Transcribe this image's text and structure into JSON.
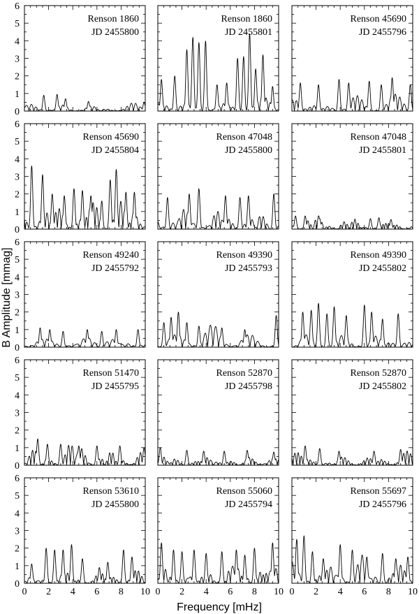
{
  "chart_data": {
    "type": "line",
    "xlabel": "Frequency [mHz]",
    "ylabel": "B Amplitude [mmag]",
    "xlim": [
      0,
      10
    ],
    "ylim": [
      0,
      6
    ],
    "x_ticks": [
      0,
      2,
      4,
      6,
      8,
      10
    ],
    "y_ticks": [
      0,
      1,
      2,
      3,
      4,
      5,
      6
    ],
    "panels": [
      {
        "star": "Renson 1860",
        "jd": "JD 2455800",
        "noise": 0.45,
        "peaks": [
          [
            1.6,
            0.9
          ],
          [
            2.7,
            0.95
          ],
          [
            3.4,
            0.7
          ],
          [
            5.3,
            0.55
          ],
          [
            9.9,
            0.5
          ]
        ]
      },
      {
        "star": "Renson 1860",
        "jd": "JD 2455801",
        "noise": 0.6,
        "peaks": [
          [
            0.3,
            1.8
          ],
          [
            1.4,
            2.0
          ],
          [
            2.4,
            3.5
          ],
          [
            2.9,
            4.2
          ],
          [
            3.4,
            3.9
          ],
          [
            3.95,
            4.0
          ],
          [
            4.9,
            1.5
          ],
          [
            5.7,
            1.6
          ],
          [
            6.6,
            3.0
          ],
          [
            7.1,
            3.1
          ],
          [
            7.6,
            4.4
          ],
          [
            8.1,
            2.4
          ],
          [
            8.7,
            3.2
          ],
          [
            9.5,
            1.4
          ]
        ]
      },
      {
        "star": "Renson 45690",
        "jd": "JD 2455796",
        "noise": 1.0,
        "peaks": [
          [
            0.7,
            1.6
          ],
          [
            2.2,
            1.5
          ],
          [
            3.9,
            1.8
          ],
          [
            4.7,
            1.6
          ],
          [
            6.4,
            1.7
          ],
          [
            7.4,
            1.5
          ],
          [
            8.3,
            1.9
          ],
          [
            9.8,
            1.5
          ]
        ]
      },
      {
        "star": "Renson 45690",
        "jd": "JD 2455804",
        "noise": 1.2,
        "peaks": [
          [
            0.6,
            3.6
          ],
          [
            1.5,
            3.1
          ],
          [
            2.3,
            2.0
          ],
          [
            3.3,
            1.9
          ],
          [
            4.1,
            2.3
          ],
          [
            4.8,
            2.2
          ],
          [
            5.5,
            1.9
          ],
          [
            6.4,
            1.6
          ],
          [
            7.1,
            2.8
          ],
          [
            7.6,
            3.4
          ],
          [
            8.4,
            2.1
          ],
          [
            9.1,
            2.1
          ]
        ]
      },
      {
        "star": "Renson 47048",
        "jd": "JD 2455800",
        "noise": 1.0,
        "peaks": [
          [
            0.8,
            1.8
          ],
          [
            2.6,
            2.0
          ],
          [
            3.4,
            2.3
          ],
          [
            5.6,
            1.9
          ],
          [
            6.8,
            1.8
          ],
          [
            7.5,
            1.9
          ],
          [
            9.6,
            2.0
          ]
        ]
      },
      {
        "star": "Renson 47048",
        "jd": "JD 2455801",
        "noise": 0.45,
        "peaks": [
          [
            0.3,
            0.75
          ],
          [
            1.1,
            0.75
          ],
          [
            2.3,
            0.6
          ],
          [
            6.5,
            0.6
          ],
          [
            7.2,
            0.65
          ],
          [
            8.2,
            0.55
          ]
        ]
      },
      {
        "star": "Renson 49240",
        "jd": "JD 2455792",
        "noise": 0.65,
        "peaks": [
          [
            1.3,
            1.1
          ],
          [
            2.1,
            1.0
          ],
          [
            3.2,
            0.9
          ],
          [
            5.2,
            1.0
          ],
          [
            6.4,
            0.9
          ],
          [
            7.6,
            1.0
          ],
          [
            9.4,
            1.0
          ]
        ]
      },
      {
        "star": "Renson 49390",
        "jd": "JD 2455793",
        "noise": 0.9,
        "peaks": [
          [
            0.5,
            1.4
          ],
          [
            1.1,
            1.7
          ],
          [
            1.7,
            2.0
          ],
          [
            2.4,
            1.4
          ],
          [
            3.4,
            1.2
          ],
          [
            5.3,
            1.1
          ],
          [
            7.2,
            1.0
          ],
          [
            9.8,
            1.8
          ]
        ]
      },
      {
        "star": "Renson 49390",
        "jd": "JD 2455802",
        "noise": 0.8,
        "peaks": [
          [
            0.9,
            2.0
          ],
          [
            1.6,
            2.1
          ],
          [
            2.2,
            2.5
          ],
          [
            2.9,
            1.9
          ],
          [
            3.5,
            2.3
          ],
          [
            4.5,
            1.8
          ],
          [
            6.0,
            2.4
          ],
          [
            6.6,
            2.0
          ],
          [
            7.5,
            1.6
          ],
          [
            8.8,
            1.9
          ]
        ]
      },
      {
        "star": "Renson 51470",
        "jd": "JD 2455795",
        "noise": 0.95,
        "peaks": [
          [
            1.1,
            1.5
          ],
          [
            1.9,
            1.2
          ],
          [
            3.0,
            1.2
          ],
          [
            4.5,
            1.1
          ],
          [
            6.0,
            1.1
          ],
          [
            7.9,
            1.1
          ],
          [
            9.9,
            1.0
          ]
        ]
      },
      {
        "star": "Renson 52870",
        "jd": "JD 2455798",
        "noise": 0.55,
        "peaks": [
          [
            0.2,
            1.0
          ],
          [
            2.4,
            0.85
          ],
          [
            3.8,
            0.8
          ],
          [
            5.5,
            0.8
          ],
          [
            7.4,
            0.85
          ],
          [
            9.6,
            0.75
          ]
        ]
      },
      {
        "star": "Renson 52870",
        "jd": "JD 2455802",
        "noise": 0.55,
        "peaks": [
          [
            1.1,
            1.1
          ],
          [
            2.3,
            0.95
          ],
          [
            3.9,
            0.8
          ],
          [
            6.8,
            0.8
          ],
          [
            9.0,
            0.9
          ]
        ]
      },
      {
        "star": "Renson 53610",
        "jd": "JD 2455800",
        "noise": 0.7,
        "peaks": [
          [
            0.6,
            1.1
          ],
          [
            1.8,
            2.0
          ],
          [
            2.5,
            1.9
          ],
          [
            3.2,
            1.9
          ],
          [
            3.9,
            2.2
          ],
          [
            4.8,
            1.4
          ],
          [
            6.2,
            0.9
          ],
          [
            6.9,
            1.2
          ],
          [
            8.2,
            1.9
          ],
          [
            8.9,
            1.5
          ]
        ]
      },
      {
        "star": "Renson 55060",
        "jd": "JD 2455794",
        "noise": 1.0,
        "peaks": [
          [
            0.3,
            2.3
          ],
          [
            1.3,
            1.9
          ],
          [
            2.0,
            1.8
          ],
          [
            3.0,
            1.9
          ],
          [
            4.0,
            1.7
          ],
          [
            5.3,
            1.8
          ],
          [
            6.5,
            1.9
          ],
          [
            7.2,
            1.6
          ],
          [
            8.0,
            2.0
          ],
          [
            9.5,
            2.3
          ]
        ]
      },
      {
        "star": "Renson 55697",
        "jd": "JD 2455796",
        "noise": 1.05,
        "peaks": [
          [
            0.4,
            2.5
          ],
          [
            1.0,
            2.7
          ],
          [
            1.7,
            1.8
          ],
          [
            2.6,
            1.4
          ],
          [
            4.0,
            2.2
          ],
          [
            5.0,
            1.9
          ],
          [
            6.2,
            1.5
          ],
          [
            7.5,
            1.7
          ],
          [
            8.6,
            1.4
          ],
          [
            9.6,
            1.5
          ]
        ]
      }
    ]
  }
}
